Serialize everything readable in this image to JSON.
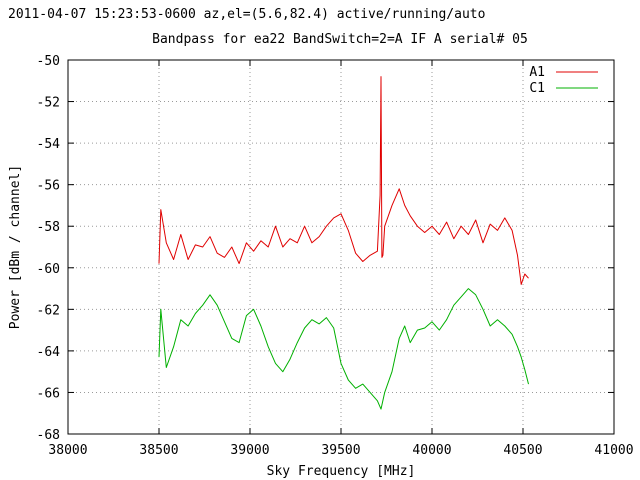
{
  "chart_data": {
    "type": "line",
    "header_line1": "2011-04-07 15:23:53-0600  az,el=(5.6,82.4) active/running/auto",
    "title": "Bandpass for ea22  BandSwitch=2=A  IF A  serial# 05",
    "xlabel": "Sky Frequency [MHz]",
    "ylabel": "Power [dBm / channel]",
    "xlim": [
      38000,
      41000
    ],
    "ylim": [
      -68,
      -50
    ],
    "xticks": [
      "38000",
      "38500",
      "39000",
      "39500",
      "40000",
      "40500",
      "41000"
    ],
    "yticks": [
      "-68",
      "-66",
      "-64",
      "-62",
      "-60",
      "-58",
      "-56",
      "-54",
      "-52",
      "-50"
    ],
    "grid": true,
    "legend_position": "top-right",
    "series": [
      {
        "name": "A1",
        "color": "#e00000",
        "x": [
          38500,
          38510,
          38540,
          38580,
          38620,
          38660,
          38700,
          38740,
          38780,
          38820,
          38860,
          38900,
          38940,
          38980,
          39020,
          39060,
          39100,
          39140,
          39180,
          39220,
          39260,
          39300,
          39340,
          39380,
          39420,
          39460,
          39500,
          39540,
          39580,
          39620,
          39660,
          39700,
          39715,
          39720,
          39725,
          39730,
          39740,
          39780,
          39820,
          39850,
          39880,
          39920,
          39960,
          40000,
          40040,
          40080,
          40120,
          40160,
          40200,
          40240,
          40280,
          40320,
          40360,
          40400,
          40440,
          40470,
          40490,
          40510,
          40530
        ],
        "y": [
          -59.8,
          -57.2,
          -58.8,
          -59.6,
          -58.4,
          -59.6,
          -58.9,
          -59.0,
          -58.5,
          -59.3,
          -59.5,
          -59.0,
          -59.8,
          -58.8,
          -59.2,
          -58.7,
          -59.0,
          -58.0,
          -59.0,
          -58.6,
          -58.8,
          -58.0,
          -58.8,
          -58.5,
          -58.0,
          -57.6,
          -57.4,
          -58.2,
          -59.3,
          -59.7,
          -59.4,
          -59.2,
          -56.5,
          -50.8,
          -59.5,
          -59.4,
          -58.0,
          -57.0,
          -56.2,
          -57.0,
          -57.5,
          -58.0,
          -58.3,
          -58.0,
          -58.4,
          -57.8,
          -58.6,
          -58.0,
          -58.4,
          -57.7,
          -58.8,
          -57.9,
          -58.2,
          -57.6,
          -58.2,
          -59.4,
          -60.8,
          -60.3,
          -60.5
        ]
      },
      {
        "name": "C1",
        "color": "#00b000",
        "x": [
          38500,
          38510,
          38540,
          38580,
          38620,
          38660,
          38700,
          38740,
          38780,
          38820,
          38860,
          38900,
          38940,
          38980,
          39020,
          39060,
          39100,
          39140,
          39180,
          39220,
          39260,
          39300,
          39340,
          39380,
          39420,
          39460,
          39500,
          39540,
          39580,
          39620,
          39660,
          39700,
          39720,
          39740,
          39780,
          39820,
          39850,
          39880,
          39920,
          39960,
          40000,
          40040,
          40080,
          40120,
          40160,
          40200,
          40240,
          40280,
          40320,
          40360,
          40400,
          40440,
          40470,
          40490,
          40510,
          40530
        ],
        "y": [
          -64.3,
          -62.0,
          -64.8,
          -63.8,
          -62.5,
          -62.8,
          -62.2,
          -61.8,
          -61.3,
          -61.8,
          -62.6,
          -63.4,
          -63.6,
          -62.3,
          -62.0,
          -62.8,
          -63.8,
          -64.6,
          -65.0,
          -64.4,
          -63.6,
          -62.9,
          -62.5,
          -62.7,
          -62.4,
          -62.9,
          -64.6,
          -65.4,
          -65.8,
          -65.6,
          -66.0,
          -66.4,
          -66.8,
          -66.0,
          -65.0,
          -63.4,
          -62.8,
          -63.6,
          -63.0,
          -62.9,
          -62.6,
          -63.0,
          -62.5,
          -61.8,
          -61.4,
          -61.0,
          -61.3,
          -62.0,
          -62.8,
          -62.5,
          -62.8,
          -63.2,
          -63.8,
          -64.3,
          -64.9,
          -65.6
        ]
      }
    ]
  }
}
